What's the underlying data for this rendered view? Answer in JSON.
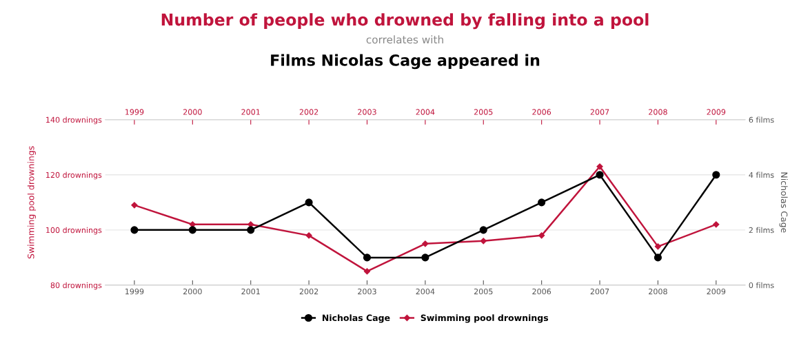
{
  "chart_data": {
    "type": "line",
    "title": "Number of people who drowned by falling into a pool",
    "subtitle": "correlates with",
    "annotations": [
      "Films Nicolas Cage appeared in"
    ],
    "x": [
      1999,
      2000,
      2001,
      2002,
      2003,
      2004,
      2005,
      2006,
      2007,
      2008,
      2009
    ],
    "xlim": [
      1998.5,
      2009.5
    ],
    "xticks": [
      1999,
      2000,
      2001,
      2002,
      2003,
      2004,
      2005,
      2006,
      2007,
      2008,
      2009
    ],
    "x2lim": [
      1998.5,
      2009.5
    ],
    "x2ticks": [
      1999,
      2000,
      2001,
      2002,
      2003,
      2004,
      2005,
      2006,
      2007,
      2008,
      2009
    ],
    "ylabel": "Swimming pool drownings",
    "y2label": "Nicholas Cage",
    "ylim": [
      80,
      140
    ],
    "yticks": [
      {
        "value": 80,
        "label": "80 drownings"
      },
      {
        "value": 100,
        "label": "100 drownings"
      },
      {
        "value": 120,
        "label": "120 drownings"
      },
      {
        "value": 140,
        "label": "140 drownings"
      }
    ],
    "y2lim": [
      0,
      6
    ],
    "y2ticks": [
      {
        "value": 0,
        "label": "0 films"
      },
      {
        "value": 2,
        "label": "2 films"
      },
      {
        "value": 4,
        "label": "4 films"
      },
      {
        "value": 6,
        "label": "6 films"
      }
    ],
    "grid": "y",
    "legend": "bottom",
    "line_style": "solid",
    "series": [
      {
        "name": "Nicholas Cage",
        "color": "#000000",
        "axis": "y2",
        "marker": "circle",
        "values": [
          2,
          2,
          2,
          3,
          1,
          1,
          2,
          3,
          4,
          1,
          4
        ]
      },
      {
        "name": "Swimming pool drownings",
        "color": "#c0143c",
        "marker": "diamond",
        "values": [
          109,
          102,
          102,
          98,
          85,
          95,
          96,
          98,
          123,
          94,
          102
        ]
      }
    ]
  }
}
